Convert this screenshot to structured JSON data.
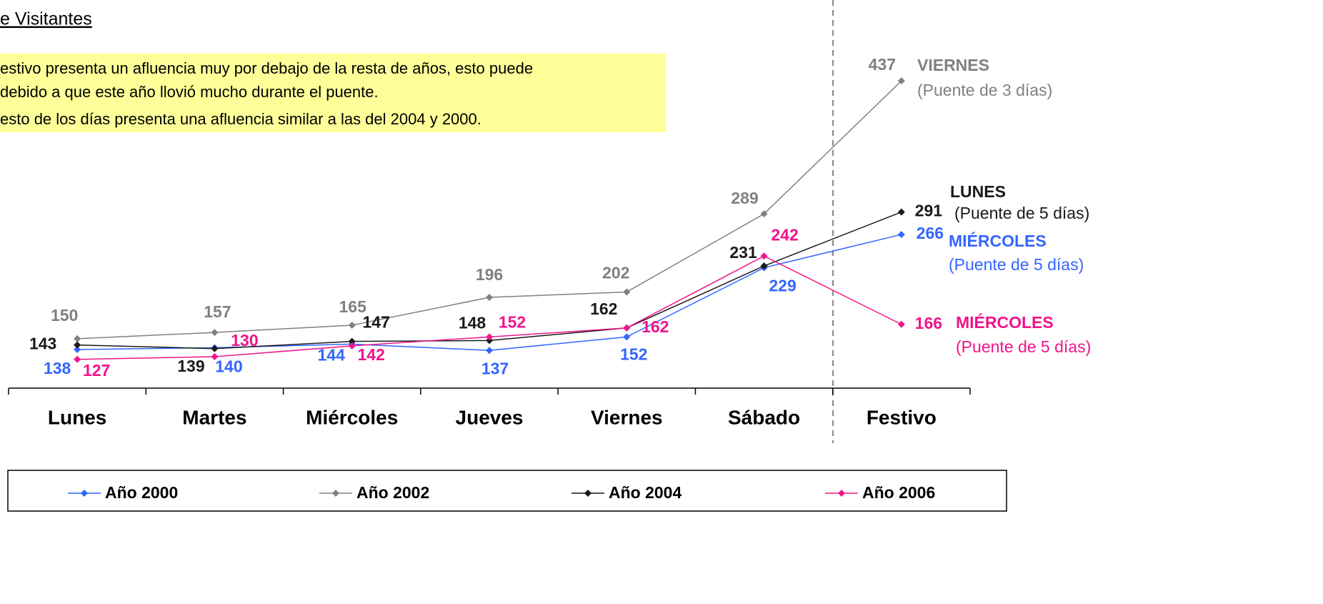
{
  "header": {
    "title": "e Visitantes"
  },
  "notes": [
    "estivo presenta un afluencia muy por debajo de la resta de años, esto puede",
    "debido a que este año llovió mucho durante el puente.",
    "esto de los días presenta una afluencia similar a las del 2004 y 2000."
  ],
  "chart_data": {
    "type": "line",
    "categories": [
      "Lunes",
      "Martes",
      "Miércoles",
      "Jueves",
      "Viernes",
      "Sábado",
      "Festivo"
    ],
    "ylim": [
      95,
      527
    ],
    "series": [
      {
        "name": "Año 2000",
        "color": "#3366ff",
        "values": [
          138,
          140,
          144,
          137,
          152,
          229,
          266
        ],
        "annotation": [
          "MIÉRCOLES",
          "(Puente de 5 días)"
        ]
      },
      {
        "name": "Año 2002",
        "color": "#808080",
        "values": [
          150,
          157,
          165,
          196,
          202,
          289,
          437
        ],
        "annotation": [
          "VIERNES",
          "(Puente de 3 días)"
        ]
      },
      {
        "name": "Año 2004",
        "color": "#1a1a1a",
        "values": [
          143,
          139,
          147,
          148,
          162,
          231,
          291
        ],
        "annotation": [
          "LUNES",
          "(Puente de 5 días)"
        ]
      },
      {
        "name": "Año 2006",
        "color": "#f0148c",
        "values": [
          127,
          130,
          142,
          152,
          162,
          242,
          166
        ],
        "annotation": [
          "MIÉRCOLES",
          "(Puente de 5 días)"
        ]
      }
    ]
  }
}
